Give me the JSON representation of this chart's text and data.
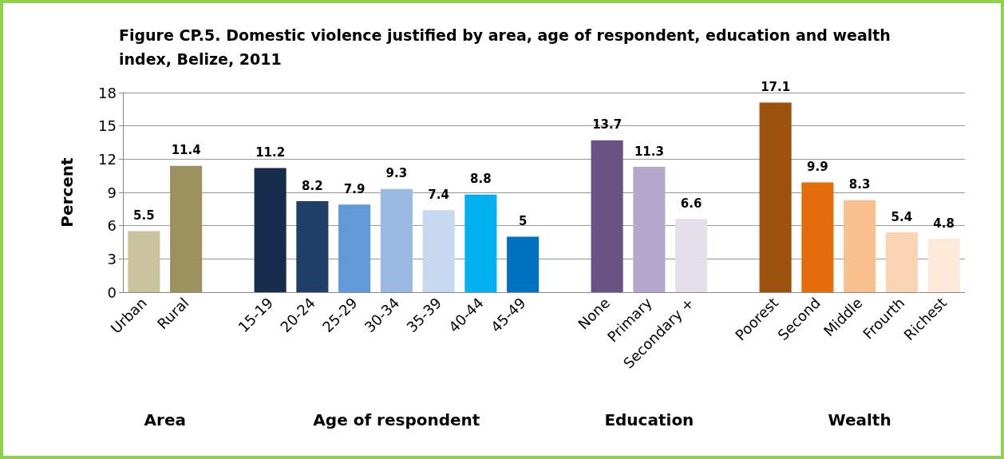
{
  "chart_data": {
    "type": "bar",
    "title": "Figure CP.5. Domestic violence justified by area, age of respondent, education and wealth index, Belize, 2011",
    "ylabel": "Percent",
    "categories": [
      "Urban",
      "Rural",
      null,
      "15-19",
      "20-24",
      "25-29",
      "30-34",
      "35-39",
      "40-44",
      "45-49",
      null,
      "None",
      "Primary",
      "Secondary +",
      null,
      "Poorest",
      "Second",
      "Middle",
      "Frourth",
      "Richest"
    ],
    "values": [
      5.5,
      11.4,
      null,
      11.2,
      8.2,
      7.9,
      9.3,
      7.4,
      8.8,
      5,
      null,
      13.7,
      11.3,
      6.6,
      null,
      17.1,
      9.9,
      8.3,
      5.4,
      4.8
    ],
    "colors": [
      "#c9c39e",
      "#9c9260",
      null,
      "#172b4a",
      "#1f3f68",
      "#6199d9",
      "#99b9e3",
      "#c6d9f0",
      "#00b0f0",
      "#0070c0",
      null,
      "#6a5384",
      "#b5a6cb",
      "#e5dfec",
      null,
      "#9c510c",
      "#e46c0a",
      "#f9c08f",
      "#fbd4b4",
      "#fde9d9"
    ],
    "ylim": [
      0,
      18
    ],
    "yticks": [
      0,
      3,
      6,
      9,
      12,
      15,
      18
    ],
    "grid": "y",
    "data_labels": true,
    "annotations": [
      "Area",
      "Age of respondent",
      "Education",
      "Wealth"
    ]
  }
}
